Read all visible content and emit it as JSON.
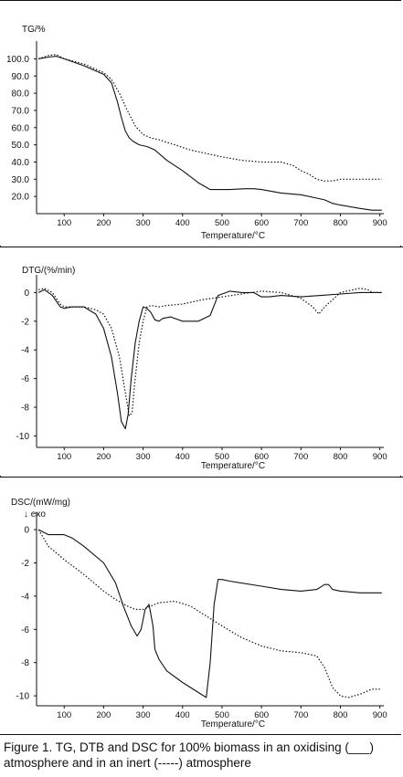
{
  "caption": {
    "line1": "Figure 1. TG, DTB and DSC for 100% biomass in an oxidising (___)",
    "line2": "atmosphere and in an inert (-----) atmosphere"
  },
  "chart_data": [
    {
      "type": "line",
      "ylabel": "TG/%",
      "xlabel": "Temperature/°C",
      "xlim": [
        30,
        910
      ],
      "ylim": [
        10,
        105
      ],
      "xticks": [
        100,
        200,
        300,
        400,
        500,
        600,
        700,
        800,
        900
      ],
      "yticks": [
        20.0,
        30.0,
        40.0,
        50.0,
        60.0,
        70.0,
        80.0,
        90.0,
        100.0
      ],
      "ytick_labels": [
        "20.0",
        "30.0",
        "40.0",
        "50.0",
        "60.0",
        "70.0",
        "80.0",
        "90.0",
        "100.0"
      ],
      "series": [
        {
          "style": "solid",
          "x": [
            35,
            60,
            80,
            100,
            150,
            200,
            220,
            235,
            245,
            255,
            265,
            275,
            290,
            310,
            330,
            360,
            400,
            440,
            470,
            490,
            520,
            560,
            580,
            600,
            650,
            700,
            740,
            760,
            780,
            800,
            850,
            880,
            905
          ],
          "y": [
            100,
            101,
            101.5,
            100,
            96,
            91,
            86,
            75,
            66,
            58,
            54,
            52,
            50,
            49,
            47,
            41,
            35,
            28,
            24,
            24,
            24,
            24.5,
            24.5,
            24,
            22,
            21,
            19,
            18,
            16,
            15,
            13,
            12,
            12
          ]
        },
        {
          "style": "dotted",
          "x": [
            35,
            60,
            80,
            100,
            150,
            200,
            220,
            240,
            260,
            280,
            300,
            320,
            340,
            380,
            420,
            460,
            500,
            550,
            600,
            650,
            680,
            700,
            720,
            740,
            760,
            780,
            800,
            850,
            880,
            905
          ],
          "y": [
            100,
            102,
            102.5,
            100,
            97,
            92,
            88,
            80,
            70,
            61,
            56,
            54,
            53,
            50,
            47,
            45,
            43,
            41,
            40,
            40,
            38,
            35,
            33,
            30,
            29,
            29,
            30,
            30,
            30,
            30
          ]
        }
      ]
    },
    {
      "type": "line",
      "ylabel": "DTG/(%/min)",
      "xlabel": "Temperature/°C",
      "xlim": [
        30,
        910
      ],
      "ylim": [
        -10.8,
        0.6
      ],
      "xticks": [
        100,
        200,
        300,
        400,
        500,
        600,
        700,
        800,
        900
      ],
      "yticks": [
        0,
        -2,
        -4,
        -6,
        -8,
        -10
      ],
      "ytick_labels": [
        "0",
        "-2",
        "-4",
        "-6",
        "-8",
        "-10"
      ],
      "series": [
        {
          "style": "solid",
          "x": [
            35,
            50,
            70,
            90,
            100,
            120,
            150,
            180,
            200,
            220,
            235,
            245,
            255,
            262,
            270,
            280,
            290,
            300,
            310,
            320,
            330,
            340,
            350,
            370,
            400,
            440,
            470,
            490,
            520,
            550,
            580,
            600,
            620,
            650,
            700,
            750,
            800,
            850,
            880,
            905
          ],
          "y": [
            0,
            0.2,
            -0.2,
            -1.0,
            -1.1,
            -1.0,
            -1.0,
            -1.5,
            -2.5,
            -4.5,
            -7,
            -9,
            -9.5,
            -8.5,
            -6,
            -3.5,
            -2,
            -1.0,
            -1.1,
            -1.4,
            -1.9,
            -2.0,
            -1.8,
            -1.7,
            -2,
            -2,
            -1.6,
            -0.2,
            0.1,
            0,
            0,
            -0.3,
            -0.3,
            -0.2,
            -0.3,
            -0.2,
            -0.1,
            0,
            0,
            0
          ]
        },
        {
          "style": "dotted",
          "x": [
            35,
            50,
            70,
            90,
            100,
            120,
            150,
            180,
            200,
            220,
            240,
            255,
            265,
            272,
            278,
            290,
            300,
            310,
            320,
            340,
            360,
            400,
            450,
            500,
            550,
            600,
            650,
            700,
            730,
            745,
            760,
            780,
            800,
            850,
            870,
            880,
            905
          ],
          "y": [
            0.2,
            0.3,
            0,
            -0.8,
            -1.0,
            -1.0,
            -1.0,
            -1.2,
            -1.5,
            -2.5,
            -4.5,
            -7,
            -8.6,
            -8.4,
            -6.5,
            -3.5,
            -2,
            -1,
            -0.9,
            -1.0,
            -0.9,
            -0.8,
            -0.5,
            -0.3,
            -0.1,
            0.1,
            0,
            -0.4,
            -1.0,
            -1.5,
            -1.0,
            -0.5,
            0,
            0.3,
            0.2,
            0,
            0
          ]
        }
      ]
    },
    {
      "type": "line",
      "ylabel": "DSC/(mW/mg)",
      "annotation": "↓ exo",
      "xlabel": "Temperature/°C",
      "xlim": [
        30,
        910
      ],
      "ylim": [
        -10.6,
        0.5
      ],
      "xticks": [
        100,
        200,
        300,
        400,
        500,
        600,
        700,
        800,
        900
      ],
      "yticks": [
        0,
        -2,
        -4,
        -6,
        -8,
        -10
      ],
      "ytick_labels": [
        "0",
        "-2",
        "-4",
        "-6",
        "-8",
        "-10"
      ],
      "series": [
        {
          "style": "solid",
          "x": [
            35,
            60,
            80,
            100,
            120,
            150,
            200,
            230,
            250,
            270,
            285,
            295,
            305,
            315,
            325,
            330,
            340,
            360,
            400,
            440,
            460,
            470,
            480,
            490,
            500,
            520,
            600,
            650,
            700,
            740,
            760,
            770,
            780,
            800,
            850,
            905
          ],
          "y": [
            0,
            -0.3,
            -0.3,
            -0.3,
            -0.5,
            -1.0,
            -2.0,
            -3.2,
            -4.6,
            -5.8,
            -6.4,
            -6.0,
            -4.8,
            -4.5,
            -5.8,
            -7.2,
            -7.8,
            -8.5,
            -9.2,
            -9.8,
            -10.1,
            -8.0,
            -4.5,
            -3.0,
            -3.0,
            -3.1,
            -3.4,
            -3.6,
            -3.7,
            -3.6,
            -3.3,
            -3.3,
            -3.6,
            -3.7,
            -3.8,
            -3.8
          ]
        },
        {
          "style": "dotted",
          "x": [
            35,
            60,
            100,
            150,
            200,
            230,
            260,
            280,
            300,
            320,
            340,
            380,
            420,
            460,
            500,
            550,
            600,
            650,
            700,
            740,
            760,
            780,
            800,
            820,
            850,
            880,
            905
          ],
          "y": [
            0,
            -1.0,
            -1.8,
            -2.7,
            -3.7,
            -4.2,
            -4.6,
            -4.8,
            -4.8,
            -4.6,
            -4.4,
            -4.3,
            -4.6,
            -5.2,
            -5.8,
            -6.5,
            -7.0,
            -7.3,
            -7.4,
            -7.6,
            -8.3,
            -9.5,
            -10.0,
            -10.1,
            -9.9,
            -9.6,
            -9.6
          ]
        }
      ]
    }
  ]
}
